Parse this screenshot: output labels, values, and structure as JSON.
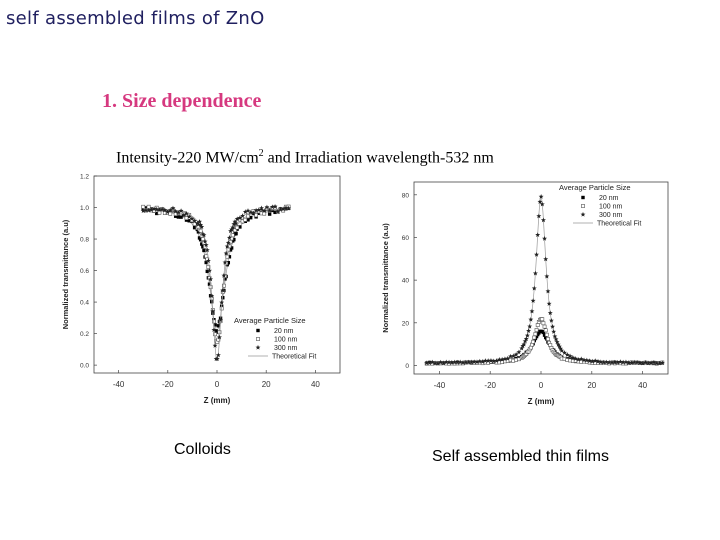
{
  "slide": {
    "title": "self assembled films of ZnO",
    "subtitle": "1. Size dependence",
    "conditions": {
      "intensity_prefix": "Intensity-220 MW/cm",
      "intensity_sup": "2",
      "rest": "  and  Irradiation wavelength-532 nm"
    }
  },
  "captions": {
    "left": "Colloids",
    "right": "Self assembled thin films"
  },
  "chart_data": [
    {
      "type": "scatter",
      "title": "",
      "xlabel": "Z (mm)",
      "ylabel": "Normalized transmittance (a.u)",
      "xlim": [
        -50,
        50
      ],
      "ylim": [
        -0.05,
        1.2
      ],
      "xticks": [
        -40,
        -20,
        0,
        20,
        40
      ],
      "yticks": [
        0.0,
        0.2,
        0.4,
        0.6,
        0.8,
        1.0,
        1.2
      ],
      "ytick_labels": [
        "0.0",
        "0.2",
        "0.4",
        "0.6",
        "0.8",
        "1.0",
        "1.2"
      ],
      "legend": {
        "title": "Average Particle Size",
        "position": "bottom-right",
        "entries": [
          "20 nm",
          "100 nm",
          "300 nm",
          "Theoretical Fit"
        ]
      },
      "series": [
        {
          "name": "20 nm",
          "marker": "square-filled",
          "depth": 0.78,
          "width": 4.0
        },
        {
          "name": "100 nm",
          "marker": "square-open",
          "depth": 0.85,
          "width": 3.2
        },
        {
          "name": "300 nm",
          "marker": "star",
          "depth": 0.97,
          "width": 2.5
        }
      ],
      "x_range": [
        -30,
        30
      ]
    },
    {
      "type": "scatter",
      "title": "",
      "xlabel": "Z (mm)",
      "ylabel": "Normalized transmittance (a.u)",
      "xlim": [
        -50,
        50
      ],
      "ylim": [
        -4,
        86
      ],
      "xticks": [
        -40,
        -20,
        0,
        20,
        40
      ],
      "yticks": [
        0,
        20,
        40,
        60,
        80
      ],
      "ytick_labels": [
        "0",
        "20",
        "40",
        "60",
        "80"
      ],
      "legend": {
        "title": "Average Particle Size",
        "position": "top-right",
        "entries": [
          "20 nm",
          "100 nm",
          "300 nm",
          "Theoretical Fit"
        ]
      },
      "series": [
        {
          "name": "20 nm",
          "marker": "square-filled",
          "peak": 16,
          "width": 4.0
        },
        {
          "name": "100 nm",
          "marker": "square-open",
          "peak": 22,
          "width": 3.0
        },
        {
          "name": "300 nm",
          "marker": "star",
          "peak": 79,
          "width": 2.4
        }
      ],
      "x_range": [
        -45,
        48
      ]
    }
  ]
}
